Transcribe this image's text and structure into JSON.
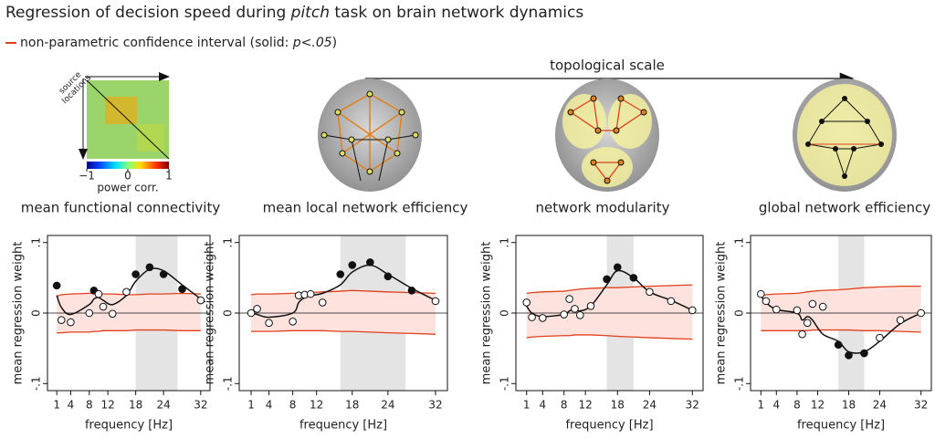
{
  "header": {
    "title": [
      "Regression of decision speed during ",
      "pitch",
      " task on brain network dynamics"
    ],
    "legend": [
      "non-parametric confidence interval (solid: ",
      "p<.05",
      ")"
    ],
    "arrow_label": "topological scale"
  },
  "matrix": {
    "axis_label": [
      "source",
      "locations"
    ],
    "colorbar_label": "power corr.",
    "colorbar_ticks": [
      {
        "value": -1,
        "label": "−1"
      },
      0,
      1
    ]
  },
  "chart_data": [
    {
      "type": "line",
      "title": "mean functional connectivity",
      "xlabel": "frequency [Hz]",
      "ylabel": "mean regression weight",
      "x": [
        1,
        2,
        4,
        8,
        9,
        10,
        11,
        13,
        16,
        18,
        21,
        24,
        28,
        32
      ],
      "values": [
        0.039,
        -0.01,
        -0.013,
        0.0,
        0.032,
        0.027,
        0.009,
        -0.001,
        0.03,
        0.055,
        0.065,
        0.055,
        0.034,
        0.018
      ],
      "significant": [
        true,
        false,
        false,
        false,
        true,
        false,
        false,
        false,
        false,
        true,
        true,
        true,
        true,
        false
      ],
      "fit": [
        0.025,
        0.008,
        -0.002,
        0.012,
        0.02,
        0.022,
        0.018,
        0.012,
        0.025,
        0.045,
        0.062,
        0.06,
        0.04,
        0.02
      ],
      "ci_upper": [
        0.024,
        0.026,
        0.027,
        0.028,
        0.028,
        0.028,
        0.027,
        0.027,
        0.026,
        0.026,
        0.027,
        0.027,
        0.028,
        0.027
      ],
      "ci_lower": [
        -0.028,
        -0.028,
        -0.027,
        -0.027,
        -0.026,
        -0.026,
        -0.025,
        -0.025,
        -0.025,
        -0.024,
        -0.024,
        -0.024,
        -0.025,
        -0.025
      ],
      "highlight": [
        18,
        27
      ],
      "xlim": [
        -1,
        34
      ],
      "ylim": [
        -0.11,
        0.11
      ],
      "xticks": [
        1,
        4,
        8,
        12,
        18,
        24,
        32
      ],
      "yticks": [
        {
          "value": -0.1,
          "label": "-.1"
        },
        0,
        {
          "value": 0.1,
          "label": ".1"
        }
      ],
      "ci_color": "#e2401b",
      "fit_color": "#111111"
    },
    {
      "type": "line",
      "title": "mean local network efficiency",
      "xlabel": "frequency [Hz]",
      "ylabel": "mean regression weight",
      "x": [
        1,
        2,
        4,
        8,
        9,
        10,
        11,
        13,
        16,
        18,
        21,
        24,
        28,
        32
      ],
      "values": [
        0.0,
        0.006,
        -0.014,
        -0.012,
        0.025,
        0.026,
        0.027,
        0.015,
        0.055,
        0.068,
        0.072,
        0.052,
        0.032,
        0.017
      ],
      "significant": [
        false,
        false,
        false,
        false,
        false,
        false,
        false,
        false,
        true,
        true,
        true,
        true,
        true,
        false
      ],
      "fit": [
        0.0,
        -0.002,
        -0.006,
        0.0,
        0.015,
        0.022,
        0.025,
        0.028,
        0.04,
        0.058,
        0.068,
        0.055,
        0.035,
        0.018
      ],
      "ci_upper": [
        0.026,
        0.027,
        0.027,
        0.028,
        0.028,
        0.029,
        0.029,
        0.03,
        0.031,
        0.032,
        0.031,
        0.03,
        0.029,
        0.028
      ],
      "ci_lower": [
        -0.026,
        -0.026,
        -0.026,
        -0.025,
        -0.025,
        -0.025,
        -0.025,
        -0.025,
        -0.026,
        -0.026,
        -0.027,
        -0.028,
        -0.029,
        -0.03
      ],
      "highlight": [
        16,
        27
      ],
      "xlim": [
        -1,
        34
      ],
      "ylim": [
        -0.11,
        0.11
      ],
      "xticks": [
        1,
        4,
        8,
        12,
        18,
        24,
        32
      ],
      "yticks": [
        {
          "value": -0.1,
          "label": "-.1"
        },
        0,
        {
          "value": 0.1,
          "label": ".1"
        }
      ],
      "ci_color": "#e2401b",
      "fit_color": "#111111"
    },
    {
      "type": "line",
      "title": "network modularity",
      "xlabel": "frequency [Hz]",
      "ylabel": "mean regression weight",
      "x": [
        1,
        2,
        4,
        8,
        9,
        10,
        11,
        13,
        16,
        18,
        21,
        24,
        28,
        32
      ],
      "values": [
        0.015,
        -0.006,
        -0.007,
        -0.002,
        0.02,
        0.006,
        -0.003,
        0.01,
        0.048,
        0.065,
        0.05,
        0.03,
        0.017,
        0.004
      ],
      "significant": [
        false,
        false,
        false,
        false,
        false,
        false,
        false,
        false,
        true,
        true,
        true,
        false,
        false,
        false
      ],
      "fit": [
        0.01,
        0.0,
        -0.005,
        -0.002,
        0.003,
        0.005,
        0.003,
        0.01,
        0.04,
        0.06,
        0.05,
        0.03,
        0.018,
        0.004
      ],
      "ci_upper": [
        0.028,
        0.029,
        0.03,
        0.031,
        0.032,
        0.033,
        0.034,
        0.035,
        0.036,
        0.036,
        0.037,
        0.038,
        0.039,
        0.04
      ],
      "ci_lower": [
        -0.035,
        -0.034,
        -0.033,
        -0.032,
        -0.032,
        -0.031,
        -0.031,
        -0.031,
        -0.032,
        -0.033,
        -0.034,
        -0.035,
        -0.036,
        -0.037
      ],
      "highlight": [
        16,
        21
      ],
      "xlim": [
        -1,
        34
      ],
      "ylim": [
        -0.11,
        0.11
      ],
      "xticks": [
        1,
        4,
        8,
        12,
        18,
        24,
        32
      ],
      "yticks": [
        {
          "value": -0.1,
          "label": "-.1"
        },
        0,
        {
          "value": 0.1,
          "label": ".1"
        }
      ],
      "ci_color": "#e2401b",
      "fit_color": "#111111"
    },
    {
      "type": "line",
      "title": "global network efficiency",
      "xlabel": "frequency [Hz]",
      "ylabel": "mean regression weight",
      "x": [
        1,
        2,
        4,
        8,
        9,
        10,
        11,
        13,
        16,
        18,
        21,
        24,
        28,
        32
      ],
      "values": [
        0.027,
        0.017,
        0.005,
        0.004,
        -0.03,
        -0.014,
        0.013,
        0.009,
        -0.045,
        -0.06,
        -0.057,
        -0.035,
        -0.01,
        0.0
      ],
      "significant": [
        false,
        false,
        false,
        false,
        false,
        false,
        false,
        false,
        true,
        true,
        true,
        false,
        false,
        false
      ],
      "fit": [
        0.025,
        0.015,
        0.005,
        0.0,
        -0.01,
        -0.005,
        -0.01,
        -0.03,
        -0.04,
        -0.055,
        -0.055,
        -0.04,
        -0.015,
        0.0
      ],
      "ci_upper": [
        0.025,
        0.026,
        0.027,
        0.028,
        0.029,
        0.03,
        0.031,
        0.032,
        0.033,
        0.034,
        0.036,
        0.037,
        0.038,
        0.038
      ],
      "ci_lower": [
        -0.025,
        -0.025,
        -0.025,
        -0.025,
        -0.025,
        -0.025,
        -0.024,
        -0.024,
        -0.024,
        -0.024,
        -0.025,
        -0.025,
        -0.026,
        -0.027
      ],
      "highlight": [
        16,
        21
      ],
      "xlim": [
        -1,
        34
      ],
      "ylim": [
        -0.11,
        0.11
      ],
      "xticks": [
        1,
        4,
        8,
        12,
        18,
        24,
        32
      ],
      "yticks": [
        {
          "value": -0.1,
          "label": "-.1"
        },
        0,
        {
          "value": 0.1,
          "label": ".1"
        }
      ],
      "ci_color": "#e2401b",
      "fit_color": "#111111"
    }
  ]
}
